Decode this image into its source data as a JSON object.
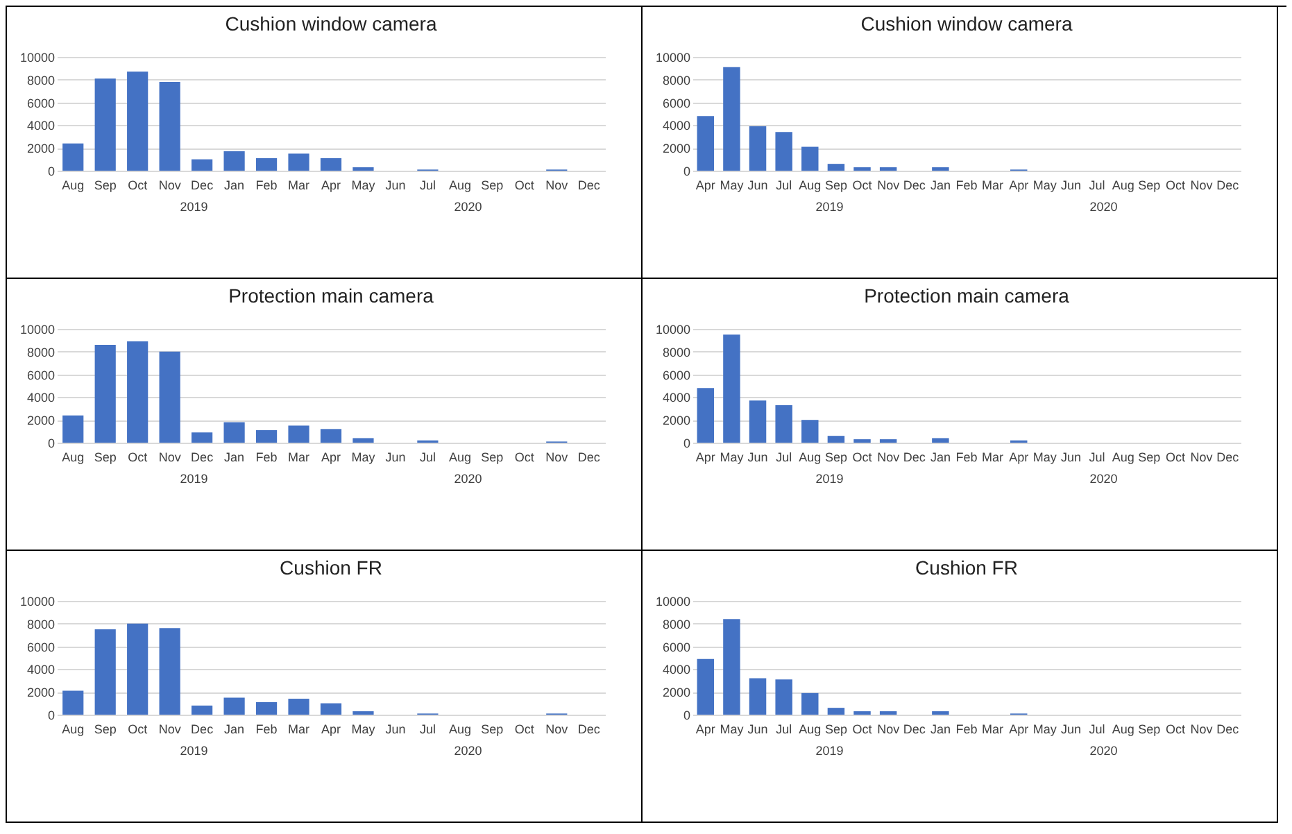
{
  "chart_data": [
    {
      "type": "bar",
      "title": "Cushion window camera",
      "categories": [
        "Aug",
        "Sep",
        "Oct",
        "Nov",
        "Dec",
        "Jan",
        "Feb",
        "Mar",
        "Apr",
        "May",
        "Jun",
        "Jul",
        "Aug",
        "Sep",
        "Oct",
        "Nov",
        "Dec"
      ],
      "values": [
        2400,
        8100,
        8700,
        7800,
        1000,
        1700,
        1100,
        1500,
        1100,
        300,
        0,
        100,
        0,
        0,
        0,
        100,
        0
      ],
      "color": "#4472c4",
      "ylim": [
        0,
        10000
      ],
      "yticks": [
        0,
        2000,
        4000,
        6000,
        8000,
        10000
      ],
      "grid": "y",
      "annotations": [
        "2019",
        "2020"
      ]
    },
    {
      "type": "bar",
      "title": "Cushion window camera",
      "categories": [
        "Apr",
        "May",
        "Jun",
        "Jul",
        "Aug",
        "Sep",
        "Oct",
        "Nov",
        "Dec",
        "Jan",
        "Feb",
        "Mar",
        "Apr",
        "May",
        "Jun",
        "Jul",
        "Aug",
        "Sep",
        "Oct",
        "Nov",
        "Dec"
      ],
      "values": [
        4800,
        9100,
        3900,
        3400,
        2100,
        600,
        300,
        300,
        0,
        300,
        0,
        0,
        100,
        0,
        0,
        0,
        0,
        0,
        0,
        0,
        0
      ],
      "color": "#4472c4",
      "ylim": [
        0,
        10000
      ],
      "yticks": [
        0,
        2000,
        4000,
        6000,
        8000,
        10000
      ],
      "grid": "y",
      "annotations": [
        "2019",
        "2020"
      ]
    },
    {
      "type": "bar",
      "title": "Protection main camera",
      "categories": [
        "Aug",
        "Sep",
        "Oct",
        "Nov",
        "Dec",
        "Jan",
        "Feb",
        "Mar",
        "Apr",
        "May",
        "Jun",
        "Jul",
        "Aug",
        "Sep",
        "Oct",
        "Nov",
        "Dec"
      ],
      "values": [
        2400,
        8600,
        8900,
        8000,
        900,
        1800,
        1100,
        1500,
        1200,
        400,
        0,
        200,
        0,
        0,
        0,
        100,
        0
      ],
      "color": "#4472c4",
      "ylim": [
        0,
        10000
      ],
      "yticks": [
        0,
        2000,
        4000,
        6000,
        8000,
        10000
      ],
      "grid": "y",
      "annotations": [
        "2019",
        "2020"
      ]
    },
    {
      "type": "bar",
      "title": "Protection main camera",
      "categories": [
        "Apr",
        "May",
        "Jun",
        "Jul",
        "Aug",
        "Sep",
        "Oct",
        "Nov",
        "Dec",
        "Jan",
        "Feb",
        "Mar",
        "Apr",
        "May",
        "Jun",
        "Jul",
        "Aug",
        "Sep",
        "Oct",
        "Nov",
        "Dec"
      ],
      "values": [
        4800,
        9500,
        3700,
        3300,
        2000,
        600,
        300,
        300,
        0,
        400,
        0,
        0,
        200,
        0,
        0,
        0,
        0,
        0,
        0,
        0,
        0
      ],
      "color": "#4472c4",
      "ylim": [
        0,
        10000
      ],
      "yticks": [
        0,
        2000,
        4000,
        6000,
        8000,
        10000
      ],
      "grid": "y",
      "annotations": [
        "2019",
        "2020"
      ]
    },
    {
      "type": "bar",
      "title": "Cushion FR",
      "categories": [
        "Aug",
        "Sep",
        "Oct",
        "Nov",
        "Dec",
        "Jan",
        "Feb",
        "Mar",
        "Apr",
        "May",
        "Jun",
        "Jul",
        "Aug",
        "Sep",
        "Oct",
        "Nov",
        "Dec"
      ],
      "values": [
        2100,
        7500,
        8000,
        7600,
        800,
        1500,
        1100,
        1400,
        1000,
        300,
        0,
        100,
        0,
        0,
        0,
        100,
        0
      ],
      "color": "#4472c4",
      "ylim": [
        0,
        10000
      ],
      "yticks": [
        0,
        2000,
        4000,
        6000,
        8000,
        10000
      ],
      "grid": "y",
      "annotations": [
        "2019",
        "2020"
      ]
    },
    {
      "type": "bar",
      "title": "Cushion FR",
      "categories": [
        "Apr",
        "May",
        "Jun",
        "Jul",
        "Aug",
        "Sep",
        "Oct",
        "Nov",
        "Dec",
        "Jan",
        "Feb",
        "Mar",
        "Apr",
        "May",
        "Jun",
        "Jul",
        "Aug",
        "Sep",
        "Oct",
        "Nov",
        "Dec"
      ],
      "values": [
        4900,
        8400,
        3200,
        3100,
        1900,
        600,
        300,
        300,
        0,
        300,
        0,
        0,
        100,
        0,
        0,
        0,
        0,
        0,
        0,
        0,
        0
      ],
      "color": "#4472c4",
      "ylim": [
        0,
        10000
      ],
      "yticks": [
        0,
        2000,
        4000,
        6000,
        8000,
        10000
      ],
      "grid": "y",
      "annotations": [
        "2019",
        "2020"
      ]
    }
  ]
}
